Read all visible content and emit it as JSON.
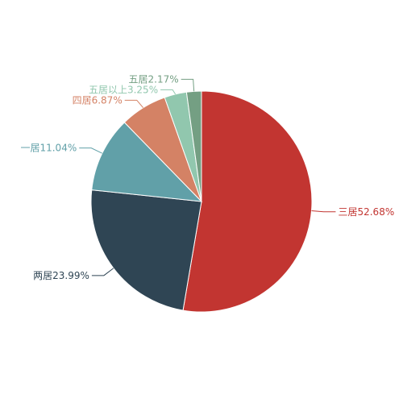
{
  "chart_data": {
    "type": "pie",
    "categories": [
      "三居",
      "两居",
      "一居",
      "四居",
      "五居以上",
      "五居"
    ],
    "values": [
      52.68,
      23.99,
      11.04,
      6.87,
      3.25,
      2.17
    ],
    "value_labels": [
      "52.68%",
      "23.99%",
      "11.04%",
      "6.87%",
      "3.25%",
      "2.17%"
    ],
    "colors": [
      "#c23531",
      "#2f4554",
      "#61a0a8",
      "#d48265",
      "#91c7ae",
      "#749f83"
    ]
  }
}
